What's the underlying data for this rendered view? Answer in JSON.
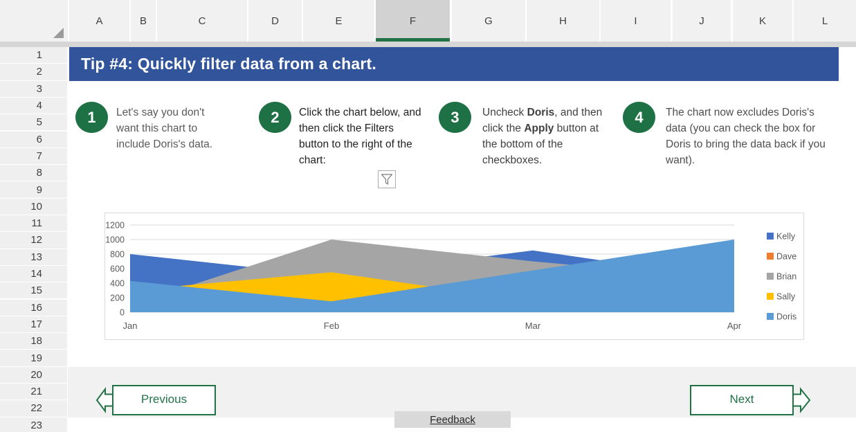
{
  "spreadsheet": {
    "column_headers": [
      "A",
      "B",
      "C",
      "D",
      "E",
      "F",
      "G",
      "H",
      "I",
      "J",
      "K",
      "L"
    ],
    "selected_column": "F",
    "row_numbers": [
      "1",
      "2",
      "3",
      "4",
      "5",
      "6",
      "7",
      "8",
      "9",
      "10",
      "11",
      "12",
      "13",
      "14",
      "15",
      "16",
      "17",
      "18",
      "19",
      "20",
      "21",
      "22",
      "23"
    ]
  },
  "banner": {
    "title": "Tip #4: Quickly filter data from a chart."
  },
  "steps": [
    {
      "number": "1",
      "text_color": "#5A5A5A",
      "segments": [
        {
          "text": "Let's say you don't want this chart to include Doris's data."
        }
      ]
    },
    {
      "number": "2",
      "text_color": "#1F1F1F",
      "icon": "funnel-icon",
      "segments": [
        {
          "text": "Click the chart below, and then click the Filters button to the right of the chart:"
        }
      ]
    },
    {
      "number": "3",
      "text_color": "#404040",
      "segments": [
        {
          "text": "Uncheck "
        },
        {
          "text": "Doris",
          "bold": true
        },
        {
          "text": ", and then click the "
        },
        {
          "text": "Apply",
          "bold": true
        },
        {
          "text": " button at the bottom of the checkboxes."
        }
      ]
    },
    {
      "number": "4",
      "text_color": "#4F4F4F",
      "segments": [
        {
          "text": "The chart now excludes Doris's data (you can check the box for Doris to bring the data back if you want)."
        }
      ]
    }
  ],
  "chart_data": {
    "type": "area",
    "overlap": true,
    "categories": [
      "Jan",
      "Feb",
      "Mar",
      "Apr"
    ],
    "series": [
      {
        "name": "Kelly",
        "color": "#4472C4",
        "values": [
          800,
          500,
          850,
          450
        ]
      },
      {
        "name": "Dave",
        "color": "#ED7D31",
        "values": [
          350,
          250,
          450,
          400
        ]
      },
      {
        "name": "Brian",
        "color": "#A5A5A5",
        "values": [
          100,
          1000,
          700,
          450
        ]
      },
      {
        "name": "Sally",
        "color": "#FFC000",
        "values": [
          300,
          550,
          150,
          300
        ]
      },
      {
        "name": "Doris",
        "color": "#5B9BD5",
        "values": [
          430,
          150,
          575,
          1000
        ]
      }
    ],
    "ylim": [
      0,
      1200
    ],
    "yticks": [
      0,
      200,
      400,
      600,
      800,
      1000,
      1200
    ],
    "grid": true,
    "legend_position": "right"
  },
  "buttons": {
    "previous": "Previous",
    "next": "Next",
    "feedback": "Feedback"
  },
  "icons": {
    "select_all": "corner-triangle",
    "step2_filter": "funnel",
    "previous": "left-block-arrow",
    "next": "right-block-arrow"
  },
  "colors": {
    "banner_bg": "#32549B",
    "accent_green": "#1E7145",
    "button_green": "#217346",
    "band_bg": "#F1F1F1",
    "gridline": "#D9D9D9",
    "axis_text": "#595959",
    "feedback_bg": "#D9D9D9",
    "feedback_text": "#262626"
  }
}
